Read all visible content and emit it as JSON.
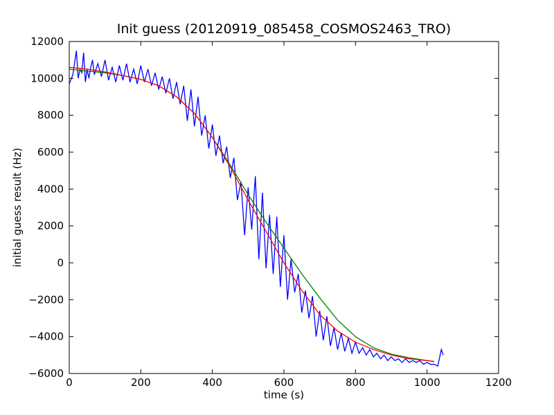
{
  "chart_data": {
    "type": "line",
    "title": "Init guess (20120919_085458_COSMOS2463_TRO)",
    "xlabel": "time (s)",
    "ylabel": "initial guess result (Hz)",
    "xlim": [
      0,
      1200
    ],
    "ylim": [
      -6000,
      12000
    ],
    "xticks": [
      0,
      200,
      400,
      600,
      800,
      1000,
      1200
    ],
    "yticks": [
      -6000,
      -4000,
      -2000,
      0,
      2000,
      4000,
      6000,
      8000,
      10000,
      12000
    ],
    "grid": false,
    "series": [
      {
        "color": "#0000ff",
        "x": [
          0,
          10,
          20,
          25,
          30,
          35,
          40,
          45,
          50,
          55,
          60,
          65,
          70,
          80,
          90,
          100,
          110,
          120,
          130,
          140,
          150,
          160,
          170,
          180,
          190,
          200,
          210,
          220,
          230,
          240,
          250,
          260,
          270,
          280,
          290,
          300,
          310,
          320,
          330,
          340,
          350,
          360,
          370,
          380,
          390,
          400,
          410,
          420,
          430,
          440,
          450,
          460,
          470,
          480,
          490,
          500,
          510,
          520,
          530,
          540,
          550,
          560,
          570,
          580,
          590,
          600,
          610,
          620,
          630,
          640,
          650,
          660,
          670,
          680,
          690,
          700,
          710,
          720,
          730,
          740,
          750,
          760,
          770,
          780,
          790,
          800,
          810,
          820,
          830,
          840,
          850,
          860,
          870,
          880,
          890,
          900,
          910,
          920,
          930,
          940,
          950,
          960,
          970,
          980,
          990,
          1000,
          1010,
          1020,
          1030,
          1040,
          1045
        ],
        "values": [
          9700,
          10200,
          11500,
          10000,
          10500,
          10300,
          11400,
          9800,
          10500,
          10000,
          10600,
          11000,
          10200,
          10800,
          10100,
          11000,
          9900,
          10600,
          9800,
          10700,
          9900,
          10800,
          9800,
          10500,
          9700,
          10700,
          9800,
          10500,
          9600,
          10300,
          9400,
          10100,
          9200,
          10000,
          8900,
          9800,
          8600,
          9600,
          7700,
          9400,
          7400,
          9000,
          6900,
          8000,
          6200,
          7500,
          5800,
          6900,
          5400,
          6300,
          4600,
          5700,
          3400,
          4400,
          1500,
          4100,
          1800,
          4700,
          200,
          3800,
          -300,
          2600,
          -600,
          2500,
          -1300,
          1500,
          -2000,
          200,
          -1600,
          -600,
          -2700,
          -1500,
          -3000,
          -1800,
          -4000,
          -2600,
          -4200,
          -2900,
          -4500,
          -3500,
          -4700,
          -3800,
          -4800,
          -4100,
          -4900,
          -4300,
          -4900,
          -4600,
          -5000,
          -4700,
          -5100,
          -4900,
          -5200,
          -5000,
          -5300,
          -5100,
          -5300,
          -5200,
          -5400,
          -5200,
          -5400,
          -5300,
          -5400,
          -5300,
          -5500,
          -5400,
          -5500,
          -5500,
          -5600,
          -4700,
          -5000
        ]
      },
      {
        "color": "#008000",
        "x": [
          0,
          50,
          100,
          150,
          200,
          250,
          300,
          350,
          400,
          450,
          500,
          550,
          600,
          650,
          700,
          750,
          800,
          850,
          900,
          950,
          1000,
          1020
        ],
        "values": [
          10500,
          10400,
          10300,
          10150,
          9950,
          9600,
          9000,
          8100,
          6800,
          5300,
          3700,
          2200,
          800,
          -600,
          -1900,
          -3100,
          -4000,
          -4600,
          -4950,
          -5150,
          -5300,
          -5350
        ]
      },
      {
        "color": "#ff0000",
        "x": [
          0,
          50,
          100,
          150,
          200,
          250,
          300,
          350,
          400,
          450,
          500,
          550,
          600,
          650,
          700,
          750,
          800,
          850,
          900,
          950,
          1000,
          1020
        ],
        "values": [
          10600,
          10500,
          10350,
          10150,
          9950,
          9600,
          9000,
          8100,
          6800,
          5200,
          3400,
          1700,
          0,
          -1500,
          -2800,
          -3700,
          -4300,
          -4700,
          -5000,
          -5200,
          -5300,
          -5350
        ]
      }
    ]
  }
}
